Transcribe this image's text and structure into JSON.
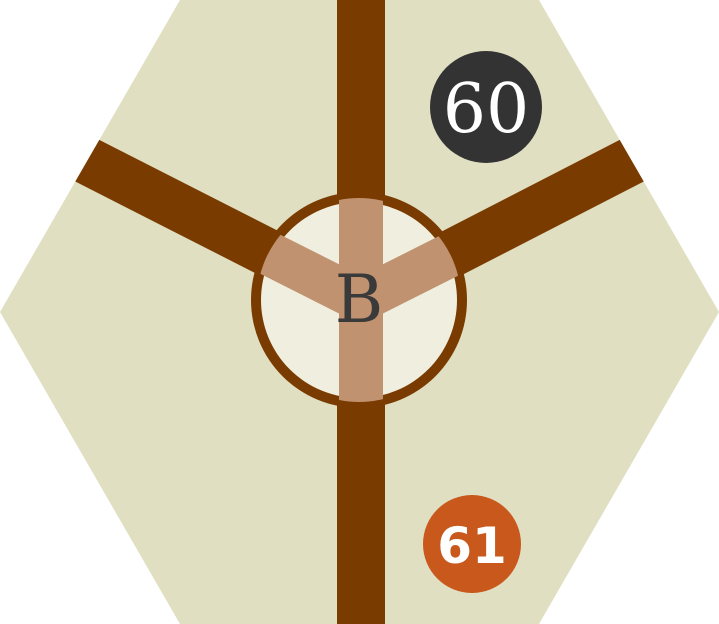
{
  "tile": {
    "center_label": "B",
    "badges": [
      {
        "label": "60",
        "style": "dark"
      },
      {
        "label": "61",
        "style": "orange"
      }
    ]
  },
  "colors": {
    "hex_fill": "#e0dfc2",
    "track": "#7a3b00",
    "track_inner": "#c0926f",
    "hub_fill": "#efeedf",
    "badge_dark": "#333333",
    "badge_orange": "#c8581c",
    "badge_text": "#ffffff",
    "label_text": "#3a3a3a"
  }
}
